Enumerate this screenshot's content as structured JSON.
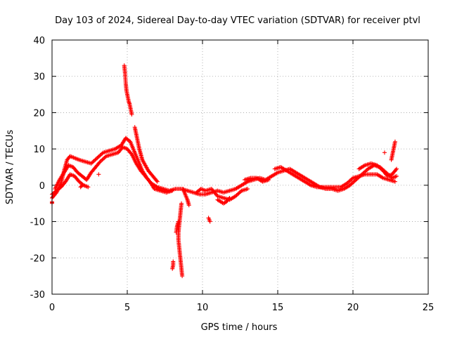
{
  "chart_data": {
    "type": "scatter",
    "title": "Day 103 of 2024, Sidereal Day-to-day VTEC variation (SDTVAR) for receiver ptvl",
    "xlabel": "GPS time / hours",
    "ylabel": "SDTVAR / TECUs",
    "xlim": [
      0,
      25
    ],
    "ylim": [
      -30,
      40
    ],
    "xticks": [
      0,
      5,
      10,
      15,
      20,
      25
    ],
    "yticks": [
      -30,
      -20,
      -10,
      0,
      10,
      20,
      30,
      40
    ],
    "xtick_labels": [
      "0",
      "5",
      "10",
      "15",
      "20",
      "25"
    ],
    "ytick_labels": [
      "-30",
      "-20",
      "-10",
      "0",
      "10",
      "20",
      "30",
      "40"
    ],
    "grid": true,
    "marker": "plus",
    "series": [
      {
        "name": "SDTVAR",
        "color": "#ff0000",
        "note": "Each track is a sequence of [GPS hour, SDTVAR] samples (approximate, read off the plot).",
        "tracks": [
          [
            [
              0.0,
              -3.5
            ],
            [
              0.3,
              -2.0
            ],
            [
              0.6,
              0.5
            ],
            [
              0.8,
              4.0
            ],
            [
              1.0,
              7.0
            ],
            [
              1.2,
              8.0
            ],
            [
              1.5,
              7.5
            ],
            [
              1.8,
              7.0
            ],
            [
              2.2,
              6.5
            ],
            [
              2.6,
              6.0
            ],
            [
              3.0,
              7.5
            ],
            [
              3.4,
              9.0
            ],
            [
              3.8,
              9.5
            ],
            [
              4.2,
              10.0
            ],
            [
              4.6,
              11.0
            ],
            [
              4.9,
              13.0
            ],
            [
              5.2,
              12.0
            ],
            [
              5.5,
              9.0
            ],
            [
              5.8,
              6.0
            ],
            [
              6.0,
              4.0
            ],
            [
              6.3,
              2.0
            ],
            [
              6.6,
              0.5
            ],
            [
              7.0,
              -0.5
            ],
            [
              7.4,
              -1.0
            ],
            [
              7.8,
              -1.5
            ],
            [
              8.2,
              -1.0
            ],
            [
              8.6,
              -1.0
            ],
            [
              9.0,
              -1.5
            ],
            [
              9.4,
              -2.0
            ],
            [
              9.8,
              -2.5
            ],
            [
              10.2,
              -2.5
            ],
            [
              10.6,
              -2.0
            ],
            [
              11.0,
              -1.5
            ],
            [
              11.4,
              -2.0
            ],
            [
              11.8,
              -1.5
            ],
            [
              12.2,
              -1.0
            ],
            [
              12.6,
              0.0
            ],
            [
              13.0,
              1.0
            ],
            [
              13.4,
              1.5
            ],
            [
              13.8,
              2.0
            ],
            [
              14.2,
              1.5
            ],
            [
              14.6,
              2.5
            ],
            [
              15.0,
              3.5
            ],
            [
              15.4,
              4.0
            ],
            [
              15.8,
              4.5
            ],
            [
              16.2,
              3.5
            ],
            [
              16.6,
              2.5
            ],
            [
              17.0,
              1.5
            ],
            [
              17.4,
              0.5
            ],
            [
              17.8,
              -0.5
            ],
            [
              18.2,
              -1.0
            ],
            [
              18.6,
              -1.0
            ],
            [
              19.0,
              -1.5
            ],
            [
              19.4,
              -1.0
            ],
            [
              19.8,
              0.0
            ],
            [
              20.2,
              1.5
            ],
            [
              20.6,
              3.0
            ],
            [
              21.0,
              4.5
            ],
            [
              21.4,
              5.5
            ],
            [
              21.8,
              5.0
            ],
            [
              22.2,
              3.5
            ],
            [
              22.6,
              2.0
            ],
            [
              22.9,
              2.5
            ]
          ],
          [
            [
              0.2,
              -1.0
            ],
            [
              0.5,
              1.5
            ],
            [
              0.8,
              3.5
            ],
            [
              1.1,
              5.5
            ],
            [
              1.4,
              5.0
            ],
            [
              1.7,
              3.5
            ],
            [
              2.0,
              2.5
            ],
            [
              2.3,
              1.5
            ],
            [
              2.6,
              3.5
            ],
            [
              2.9,
              5.0
            ],
            [
              3.2,
              6.5
            ],
            [
              3.6,
              8.0
            ],
            [
              4.0,
              8.5
            ],
            [
              4.4,
              9.0
            ],
            [
              4.7,
              10.5
            ],
            [
              5.0,
              10.0
            ],
            [
              5.3,
              8.5
            ],
            [
              5.6,
              6.0
            ],
            [
              5.9,
              4.0
            ],
            [
              6.2,
              2.5
            ],
            [
              6.5,
              1.0
            ],
            [
              6.8,
              -1.0
            ],
            [
              7.2,
              -1.5
            ],
            [
              7.6,
              -2.0
            ],
            [
              8.0,
              -1.5
            ]
          ],
          [
            [
              0.0,
              -2.5
            ],
            [
              0.3,
              -1.5
            ],
            [
              0.6,
              -0.5
            ],
            [
              0.9,
              1.0
            ],
            [
              1.2,
              3.0
            ],
            [
              1.5,
              2.5
            ],
            [
              1.8,
              1.0
            ],
            [
              2.1,
              0.0
            ],
            [
              2.4,
              -0.5
            ]
          ],
          [
            [
              4.8,
              33.0
            ],
            [
              4.85,
              31.0
            ],
            [
              4.9,
              28.0
            ],
            [
              4.95,
              26.0
            ],
            [
              5.0,
              25.0
            ],
            [
              5.05,
              24.0
            ],
            [
              5.1,
              23.0
            ],
            [
              5.15,
              22.5
            ],
            [
              5.2,
              21.5
            ],
            [
              5.25,
              20.5
            ],
            [
              5.3,
              19.5
            ]
          ],
          [
            [
              5.5,
              16.0
            ],
            [
              5.6,
              14.0
            ],
            [
              5.7,
              12.0
            ],
            [
              5.8,
              10.0
            ],
            [
              5.9,
              8.5
            ],
            [
              6.0,
              7.0
            ],
            [
              6.2,
              5.5
            ],
            [
              6.4,
              4.0
            ],
            [
              6.6,
              3.0
            ],
            [
              6.8,
              2.0
            ],
            [
              7.0,
              1.0
            ]
          ],
          [
            [
              8.6,
              -5.0
            ],
            [
              8.55,
              -7.0
            ],
            [
              8.5,
              -9.0
            ],
            [
              8.45,
              -11.0
            ],
            [
              8.4,
              -13.0
            ],
            [
              8.4,
              -15.0
            ],
            [
              8.45,
              -17.0
            ],
            [
              8.5,
              -19.0
            ],
            [
              8.55,
              -21.0
            ],
            [
              8.6,
              -23.0
            ],
            [
              8.65,
              -25.0
            ]
          ],
          [
            [
              8.4,
              -10.0
            ],
            [
              8.3,
              -11.5
            ],
            [
              8.25,
              -13.0
            ]
          ],
          [
            [
              8.7,
              -1.0
            ],
            [
              8.8,
              -2.0
            ],
            [
              8.9,
              -3.0
            ],
            [
              9.0,
              -4.0
            ],
            [
              9.1,
              -5.5
            ]
          ],
          [
            [
              8.05,
              -21.0
            ],
            [
              8.05,
              -22.0
            ],
            [
              8.0,
              -23.0
            ]
          ],
          [
            [
              10.4,
              -9.0
            ],
            [
              10.5,
              -10.0
            ]
          ],
          [
            [
              9.6,
              -2.0
            ],
            [
              9.9,
              -1.0
            ],
            [
              10.2,
              -1.5
            ],
            [
              10.6,
              -1.0
            ],
            [
              11.0,
              -3.0
            ],
            [
              11.4,
              -3.5
            ],
            [
              11.8,
              -4.0
            ],
            [
              12.2,
              -3.0
            ],
            [
              12.6,
              -1.5
            ],
            [
              13.0,
              -1.0
            ]
          ],
          [
            [
              11.0,
              -4.0
            ],
            [
              11.2,
              -4.5
            ],
            [
              11.4,
              -5.0
            ],
            [
              11.6,
              -4.5
            ],
            [
              11.8,
              -3.5
            ]
          ],
          [
            [
              12.8,
              1.5
            ],
            [
              13.2,
              2.0
            ],
            [
              13.6,
              2.0
            ],
            [
              14.0,
              1.0
            ],
            [
              14.4,
              1.5
            ]
          ],
          [
            [
              14.8,
              4.5
            ],
            [
              15.2,
              5.0
            ],
            [
              15.6,
              4.0
            ],
            [
              16.0,
              3.0
            ],
            [
              16.4,
              2.0
            ],
            [
              16.8,
              1.0
            ],
            [
              17.2,
              0.0
            ],
            [
              17.6,
              -0.5
            ],
            [
              18.0,
              -0.5
            ],
            [
              18.4,
              -0.5
            ],
            [
              18.8,
              -0.5
            ],
            [
              19.2,
              -0.5
            ],
            [
              19.6,
              0.5
            ],
            [
              20.0,
              2.0
            ],
            [
              20.4,
              2.5
            ],
            [
              20.8,
              3.0
            ],
            [
              21.2,
              3.0
            ],
            [
              21.6,
              3.0
            ],
            [
              22.0,
              2.0
            ],
            [
              22.4,
              1.5
            ],
            [
              22.8,
              1.0
            ]
          ],
          [
            [
              20.4,
              4.5
            ],
            [
              20.8,
              5.5
            ],
            [
              21.2,
              6.0
            ],
            [
              21.6,
              5.5
            ],
            [
              22.0,
              4.0
            ],
            [
              22.3,
              2.5
            ],
            [
              22.6,
              3.0
            ],
            [
              22.8,
              4.0
            ],
            [
              22.9,
              4.5
            ]
          ],
          [
            [
              22.55,
              7.0
            ],
            [
              22.6,
              8.0
            ],
            [
              22.65,
              9.0
            ],
            [
              22.7,
              10.0
            ],
            [
              22.75,
              11.0
            ],
            [
              22.8,
              12.0
            ]
          ],
          [
            [
              22.1,
              9.0
            ]
          ],
          [
            [
              3.1,
              3.0
            ]
          ],
          [
            [
              0.0,
              -4.5
            ],
            [
              0.0,
              -5.0
            ]
          ],
          [
            [
              1.9,
              -0.5
            ],
            [
              2.0,
              0.0
            ]
          ]
        ]
      }
    ]
  }
}
